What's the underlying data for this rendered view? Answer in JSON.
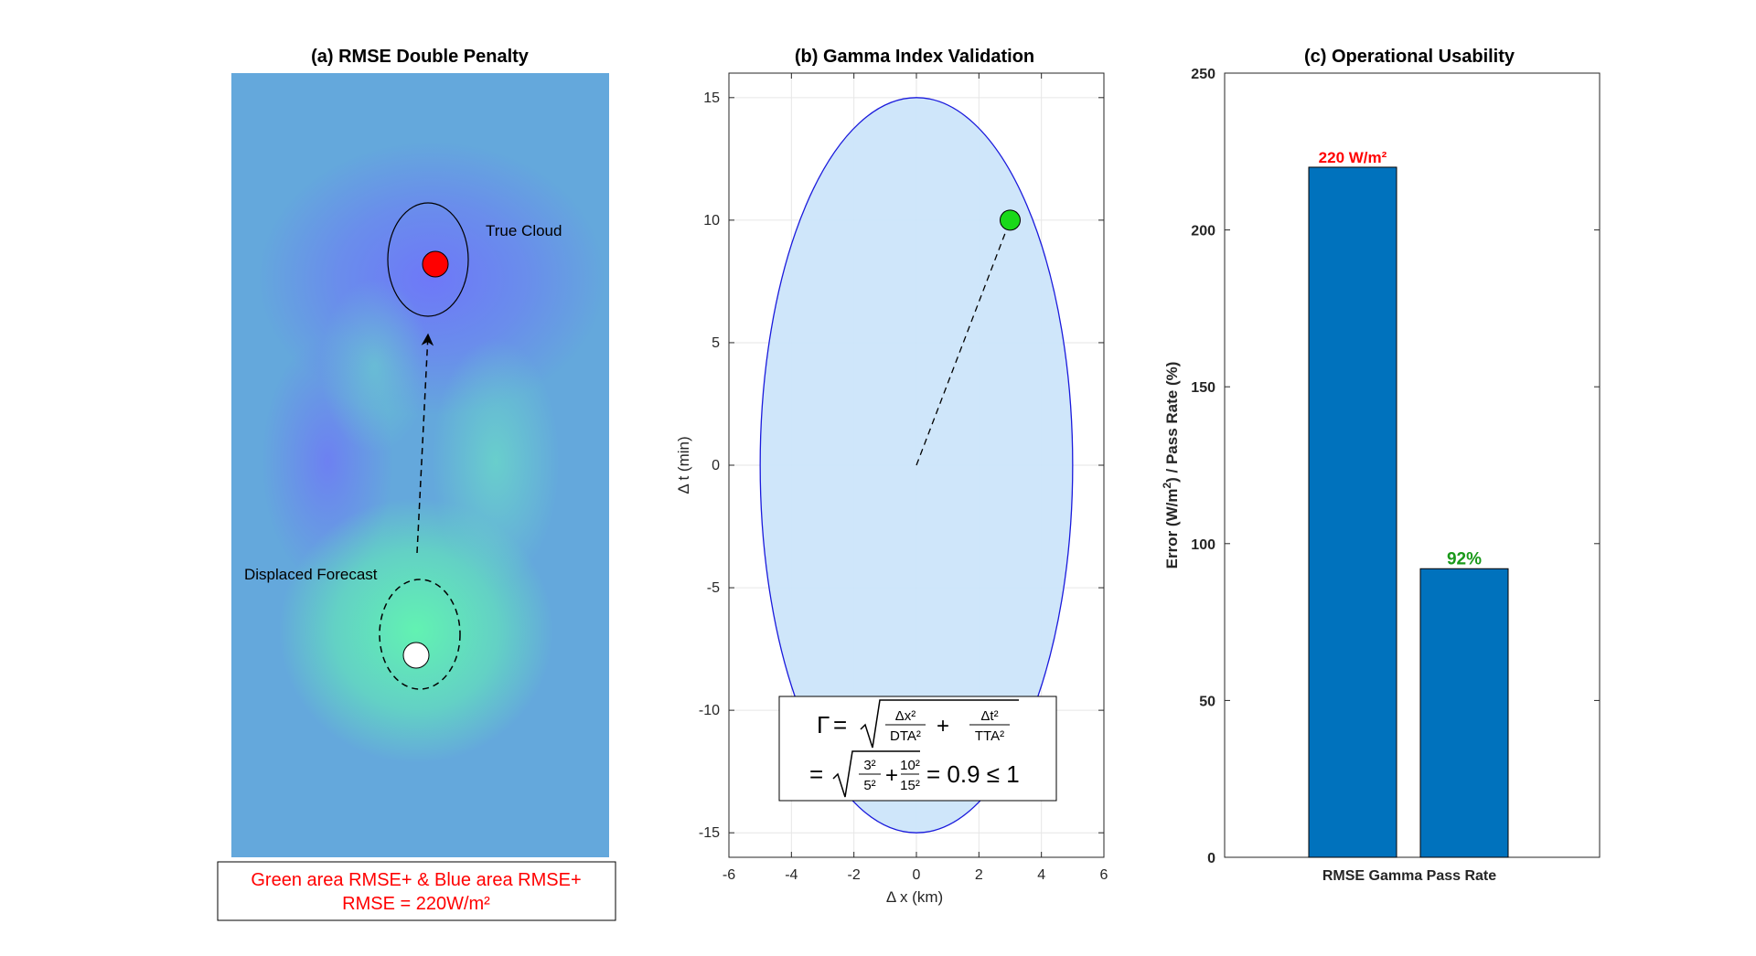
{
  "chart_data": [
    {
      "type": "heatmap",
      "title": "(a) RMSE Double Penalty",
      "annotations": {
        "true_cloud": "True Cloud",
        "forecast": "Displaced Forecast",
        "note_line1": "Green area RMSE+ & Blue area RMSE+",
        "note_line2": "RMSE = 220W/m²"
      },
      "colors": {
        "background": "#64A8DC",
        "blue_blob": "#6E78F8",
        "green_blob": "#64F0B4",
        "true_marker": "#FF0000",
        "forecast_marker": "#FFFFFF",
        "note_text": "#FF0000"
      }
    },
    {
      "type": "scatter",
      "title": "(b) Gamma Index Validation",
      "xlabel": "Δ x (km)",
      "ylabel": "Δ t (min)",
      "xlim": [
        -6,
        6
      ],
      "ylim": [
        -16,
        16
      ],
      "xticks": [
        "-6",
        "-4",
        "-2",
        "0",
        "2",
        "4",
        "6"
      ],
      "yticks": [
        "-15",
        "-10",
        "-5",
        "0",
        "5",
        "10",
        "15"
      ],
      "ellipse": {
        "center": [
          0,
          0
        ],
        "rx": 5,
        "ry": 15,
        "fill": "#CCE5FA",
        "stroke": "#1A1ADC"
      },
      "point": {
        "x": 3,
        "y": 10,
        "color": "#19D919"
      },
      "formula": {
        "lhs": "Γ",
        "term1_num": "Δx²",
        "term1_den": "DTA²",
        "term2_num": "Δt²",
        "term2_den": "TTA²",
        "num1": "3²",
        "den1": "5²",
        "num2": "10²",
        "den2": "15²",
        "result": "= 0.9 ≤ 1",
        "equals": "=",
        "plus": "+"
      }
    },
    {
      "type": "bar",
      "title": "(c) Operational Usability",
      "categories": [
        "RMSE",
        "Gamma Pass Rate"
      ],
      "values": [
        220,
        92
      ],
      "ylabel_main": "Error (W/m",
      "ylabel_sup": "2",
      "ylabel_rest": ") / Pass Rate (%)",
      "ylim": [
        0,
        250
      ],
      "yticks": [
        "0",
        "50",
        "100",
        "150",
        "200",
        "250"
      ],
      "xticklabel": "RMSE Gamma Pass Rate",
      "bar_labels": [
        "220 W/m²",
        "92%"
      ],
      "bar_label_colors": [
        "#FF0000",
        "#1A991A"
      ],
      "bar_color": "#0072BD"
    }
  ]
}
